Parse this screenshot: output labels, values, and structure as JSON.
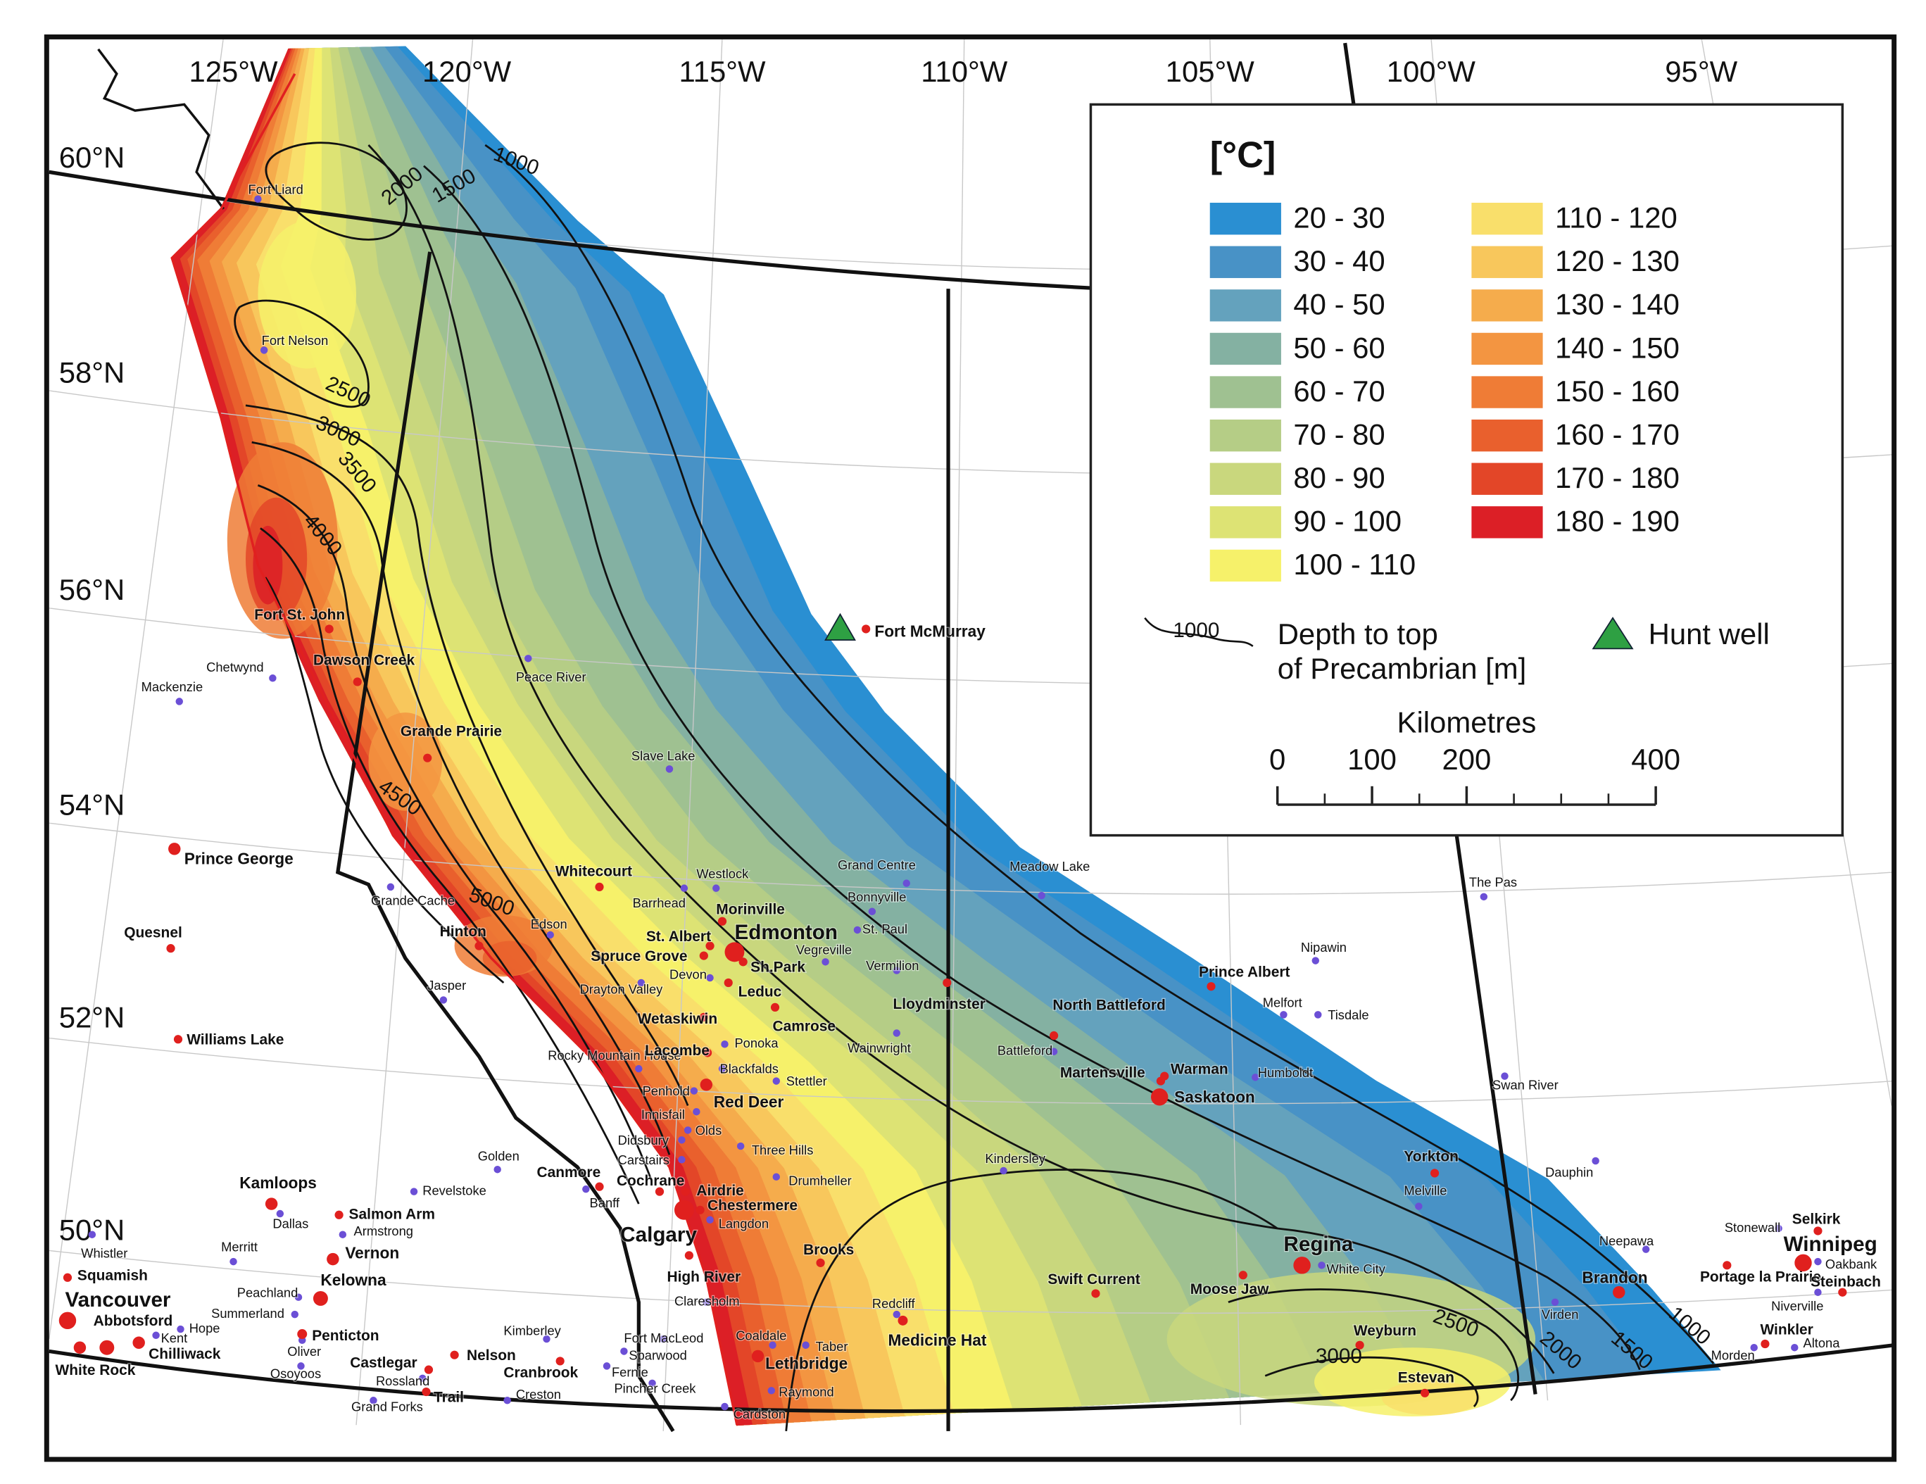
{
  "map": {
    "longitude_labels": [
      "125°W",
      "120°W",
      "115°W",
      "110°W",
      "105°W",
      "100°W",
      "95°W"
    ],
    "latitude_labels": [
      "60°N",
      "58°N",
      "56°N",
      "54°N",
      "52°N",
      "50°N"
    ],
    "contour_labels": [
      1000,
      1500,
      2000,
      2500,
      3000,
      3500,
      4000,
      4500,
      5000,
      2500,
      3000,
      2000,
      1500,
      1000
    ],
    "cities": [
      {
        "name": "Fort Liard",
        "color": "#6b4fd6"
      },
      {
        "name": "Fort Nelson",
        "color": "#6b4fd6"
      },
      {
        "name": "Chetwynd",
        "color": "#6b4fd6"
      },
      {
        "name": "Mackenzie",
        "color": "#6b4fd6"
      },
      {
        "name": "Peace River",
        "color": "#6b4fd6"
      },
      {
        "name": "Slave Lake",
        "color": "#6b4fd6"
      },
      {
        "name": "Westlock",
        "color": "#6b4fd6"
      },
      {
        "name": "Barrhead",
        "color": "#6b4fd6"
      },
      {
        "name": "Grand Centre",
        "color": "#6b4fd6"
      },
      {
        "name": "Bonnyville",
        "color": "#6b4fd6"
      },
      {
        "name": "St. Paul",
        "color": "#6b4fd6"
      },
      {
        "name": "Vegreville",
        "color": "#6b4fd6"
      },
      {
        "name": "Vermilion",
        "color": "#6b4fd6"
      },
      {
        "name": "Wainwright",
        "color": "#6b4fd6"
      },
      {
        "name": "Battleford",
        "color": "#6b4fd6"
      },
      {
        "name": "Meadow Lake",
        "color": "#6b4fd6"
      },
      {
        "name": "Grande Cache",
        "color": "#6b4fd6"
      },
      {
        "name": "Edson",
        "color": "#6b4fd6"
      },
      {
        "name": "Jasper",
        "color": "#6b4fd6"
      },
      {
        "name": "Drayton Valley",
        "color": "#6b4fd6"
      },
      {
        "name": "Devon",
        "color": "#6b4fd6"
      },
      {
        "name": "Ponoka",
        "color": "#6b4fd6"
      },
      {
        "name": "Rocky Mountain House",
        "color": "#6b4fd6"
      },
      {
        "name": "Blackfalds",
        "color": "#6b4fd6"
      },
      {
        "name": "Stettler",
        "color": "#6b4fd6"
      },
      {
        "name": "Penhold",
        "color": "#6b4fd6"
      },
      {
        "name": "Innisfail",
        "color": "#6b4fd6"
      },
      {
        "name": "Olds",
        "color": "#6b4fd6"
      },
      {
        "name": "Didsbury",
        "color": "#6b4fd6"
      },
      {
        "name": "Carstairs",
        "color": "#6b4fd6"
      },
      {
        "name": "Three Hills",
        "color": "#6b4fd6"
      },
      {
        "name": "Drumheller",
        "color": "#6b4fd6"
      },
      {
        "name": "Golden",
        "color": "#6b4fd6"
      },
      {
        "name": "Revelstoke",
        "color": "#6b4fd6"
      },
      {
        "name": "Banff",
        "color": "#6b4fd6"
      },
      {
        "name": "Dallas",
        "color": "#6b4fd6"
      },
      {
        "name": "Armstrong",
        "color": "#6b4fd6"
      },
      {
        "name": "Langdon",
        "color": "#6b4fd6"
      },
      {
        "name": "Merritt",
        "color": "#6b4fd6"
      },
      {
        "name": "Whistler",
        "color": "#6b4fd6"
      },
      {
        "name": "Peachland",
        "color": "#6b4fd6"
      },
      {
        "name": "Summerland",
        "color": "#6b4fd6"
      },
      {
        "name": "Hope",
        "color": "#6b4fd6"
      },
      {
        "name": "Kent",
        "color": "#6b4fd6"
      },
      {
        "name": "Oliver",
        "color": "#6b4fd6"
      },
      {
        "name": "Osoyoos",
        "color": "#6b4fd6"
      },
      {
        "name": "Kimberley",
        "color": "#6b4fd6"
      },
      {
        "name": "Rossland",
        "color": "#6b4fd6"
      },
      {
        "name": "Grand Forks",
        "color": "#6b4fd6"
      },
      {
        "name": "Creston",
        "color": "#6b4fd6"
      },
      {
        "name": "Fernie",
        "color": "#6b4fd6"
      },
      {
        "name": "Sparwood",
        "color": "#6b4fd6"
      },
      {
        "name": "Fort MacLeod",
        "color": "#6b4fd6"
      },
      {
        "name": "Pincher Creek",
        "color": "#6b4fd6"
      },
      {
        "name": "Claresholm",
        "color": "#6b4fd6"
      },
      {
        "name": "Coaldale",
        "color": "#6b4fd6"
      },
      {
        "name": "Taber",
        "color": "#6b4fd6"
      },
      {
        "name": "Raymond",
        "color": "#6b4fd6"
      },
      {
        "name": "Cardston",
        "color": "#6b4fd6"
      },
      {
        "name": "Redcliff",
        "color": "#6b4fd6"
      },
      {
        "name": "Kindersley",
        "color": "#6b4fd6"
      },
      {
        "name": "Humboldt",
        "color": "#6b4fd6"
      },
      {
        "name": "Melfort",
        "color": "#6b4fd6"
      },
      {
        "name": "Tisdale",
        "color": "#6b4fd6"
      },
      {
        "name": "Nipawin",
        "color": "#6b4fd6"
      },
      {
        "name": "The Pas",
        "color": "#6b4fd6"
      },
      {
        "name": "Swan River",
        "color": "#6b4fd6"
      },
      {
        "name": "Dauphin",
        "color": "#6b4fd6"
      },
      {
        "name": "Melville",
        "color": "#6b4fd6"
      },
      {
        "name": "Neepawa",
        "color": "#6b4fd6"
      },
      {
        "name": "Virden",
        "color": "#6b4fd6"
      },
      {
        "name": "Stonewall",
        "color": "#6b4fd6"
      },
      {
        "name": "Oakbank",
        "color": "#6b4fd6"
      },
      {
        "name": "Niverville",
        "color": "#6b4fd6"
      },
      {
        "name": "Morden",
        "color": "#6b4fd6"
      },
      {
        "name": "Altona",
        "color": "#6b4fd6"
      },
      {
        "name": "White City",
        "color": "#6b4fd6"
      },
      {
        "name": "Fort McMurray",
        "color": "#e0201e"
      },
      {
        "name": "Fort St. John",
        "color": "#e0201e"
      },
      {
        "name": "Dawson Creek",
        "color": "#e0201e"
      },
      {
        "name": "Grande Prairie",
        "color": "#e0201e"
      },
      {
        "name": "Prince George",
        "color": "#e0201e"
      },
      {
        "name": "Quesnel",
        "color": "#e0201e"
      },
      {
        "name": "Williams Lake",
        "color": "#e0201e"
      },
      {
        "name": "Whitecourt",
        "color": "#e0201e"
      },
      {
        "name": "Hinton",
        "color": "#e0201e"
      },
      {
        "name": "Morinville",
        "color": "#e0201e"
      },
      {
        "name": "St. Albert",
        "color": "#e0201e"
      },
      {
        "name": "Edmonton",
        "color": "#e0201e"
      },
      {
        "name": "Spruce Grove",
        "color": "#e0201e"
      },
      {
        "name": "Sh.Park",
        "color": "#e0201e"
      },
      {
        "name": "Leduc",
        "color": "#e0201e"
      },
      {
        "name": "Wetaskiwin",
        "color": "#e0201e"
      },
      {
        "name": "Camrose",
        "color": "#e0201e"
      },
      {
        "name": "Lacombe",
        "color": "#e0201e"
      },
      {
        "name": "Red Deer",
        "color": "#e0201e"
      },
      {
        "name": "Lloydminster",
        "color": "#e0201e"
      },
      {
        "name": "North Battleford",
        "color": "#e0201e"
      },
      {
        "name": "Prince Albert",
        "color": "#e0201e"
      },
      {
        "name": "Martensville",
        "color": "#e0201e"
      },
      {
        "name": "Warman",
        "color": "#e0201e"
      },
      {
        "name": "Saskatoon",
        "color": "#e0201e"
      },
      {
        "name": "Yorkton",
        "color": "#e0201e"
      },
      {
        "name": "Regina",
        "color": "#e0201e"
      },
      {
        "name": "Moose Jaw",
        "color": "#e0201e"
      },
      {
        "name": "Swift Current",
        "color": "#e0201e"
      },
      {
        "name": "Weyburn",
        "color": "#e0201e"
      },
      {
        "name": "Estevan",
        "color": "#e0201e"
      },
      {
        "name": "Brandon",
        "color": "#e0201e"
      },
      {
        "name": "Portage la Prairie",
        "color": "#e0201e"
      },
      {
        "name": "Selkirk",
        "color": "#e0201e"
      },
      {
        "name": "Winnipeg",
        "color": "#e0201e"
      },
      {
        "name": "Steinbach",
        "color": "#e0201e"
      },
      {
        "name": "Winkler",
        "color": "#e0201e"
      },
      {
        "name": "Canmore",
        "color": "#e0201e"
      },
      {
        "name": "Cochrane",
        "color": "#e0201e"
      },
      {
        "name": "Airdrie",
        "color": "#e0201e"
      },
      {
        "name": "Chestermere",
        "color": "#e0201e"
      },
      {
        "name": "Calgary",
        "color": "#e0201e"
      },
      {
        "name": "High River",
        "color": "#e0201e"
      },
      {
        "name": "Brooks",
        "color": "#e0201e"
      },
      {
        "name": "Lethbridge",
        "color": "#e0201e"
      },
      {
        "name": "Medicine Hat",
        "color": "#e0201e"
      },
      {
        "name": "Kamloops",
        "color": "#e0201e"
      },
      {
        "name": "Salmon Arm",
        "color": "#e0201e"
      },
      {
        "name": "Vernon",
        "color": "#e0201e"
      },
      {
        "name": "Kelowna",
        "color": "#e0201e"
      },
      {
        "name": "Penticton",
        "color": "#e0201e"
      },
      {
        "name": "Squamish",
        "color": "#e0201e"
      },
      {
        "name": "Vancouver",
        "color": "#e0201e"
      },
      {
        "name": "Abbotsford",
        "color": "#e0201e"
      },
      {
        "name": "Chilliwack",
        "color": "#e0201e"
      },
      {
        "name": "White Rock",
        "color": "#e0201e"
      },
      {
        "name": "Castlegar",
        "color": "#e0201e"
      },
      {
        "name": "Nelson",
        "color": "#e0201e"
      },
      {
        "name": "Cranbrook",
        "color": "#e0201e"
      },
      {
        "name": "Trail",
        "color": "#e0201e"
      }
    ],
    "well_color": "#2ea043",
    "legend": {
      "title": "[°C]",
      "classes": [
        {
          "label": "20 - 30",
          "color": "#2a8fd2"
        },
        {
          "label": "30 - 40",
          "color": "#4892c6"
        },
        {
          "label": "40 - 50",
          "color": "#64a2bd"
        },
        {
          "label": "50 - 60",
          "color": "#84b1a2"
        },
        {
          "label": "60 - 70",
          "color": "#9fc191"
        },
        {
          "label": "70 - 80",
          "color": "#b5cd86"
        },
        {
          "label": "80 - 90",
          "color": "#c9d77d"
        },
        {
          "label": "90 - 100",
          "color": "#dde374"
        },
        {
          "label": "100 - 110",
          "color": "#f6f16a"
        },
        {
          "label": "110 - 120",
          "color": "#f9df6b"
        },
        {
          "label": "120 - 130",
          "color": "#f8c75c"
        },
        {
          "label": "130 - 140",
          "color": "#f5ac4c"
        },
        {
          "label": "140 - 150",
          "color": "#f39541"
        },
        {
          "label": "150 - 160",
          "color": "#ef7c36"
        },
        {
          "label": "160 - 170",
          "color": "#e9602d"
        },
        {
          "label": "170 - 180",
          "color": "#e34628"
        },
        {
          "label": "180 - 190",
          "color": "#dc1f26"
        }
      ],
      "contour_sample": "1000",
      "contour_text": [
        "Depth to top",
        "of Precambrian [m]"
      ],
      "well_text": "Hunt well"
    },
    "scale": {
      "title": "Kilometres",
      "ticks": [
        0,
        100,
        200,
        400
      ],
      "range": [
        0,
        400
      ]
    }
  }
}
